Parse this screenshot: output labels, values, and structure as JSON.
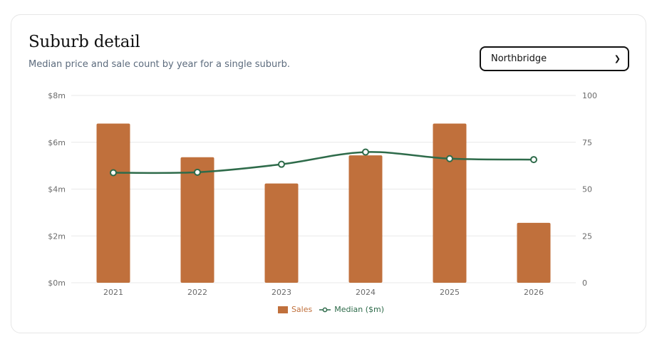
{
  "header": {
    "title": "Suburb detail",
    "subtitle": "Median price and sale count by year for a single suburb."
  },
  "suburb_select": {
    "value": "Northbridge"
  },
  "colors": {
    "sales": "#c0703c",
    "median": "#2e6b4a",
    "grid": "#e8e8e8"
  },
  "chart_data": {
    "type": "bar",
    "categories": [
      "2021",
      "2022",
      "2023",
      "2024",
      "2025",
      "2026"
    ],
    "series": [
      {
        "name": "Sales",
        "type": "bar",
        "axis": "right",
        "values": [
          85,
          67,
          53,
          68,
          85,
          32
        ]
      },
      {
        "name": "Median ($m)",
        "type": "line",
        "axis": "left",
        "values": [
          4.7,
          4.72,
          5.06,
          5.58,
          5.3,
          5.26
        ]
      }
    ],
    "y_left": {
      "ticks": [
        "$0m",
        "$2m",
        "$4m",
        "$6m",
        "$8m"
      ],
      "range": [
        0,
        8
      ]
    },
    "y_right": {
      "ticks": [
        "0",
        "25",
        "50",
        "75",
        "100"
      ],
      "range": [
        0,
        100
      ]
    },
    "grid": true,
    "legend": "bottom-center"
  }
}
